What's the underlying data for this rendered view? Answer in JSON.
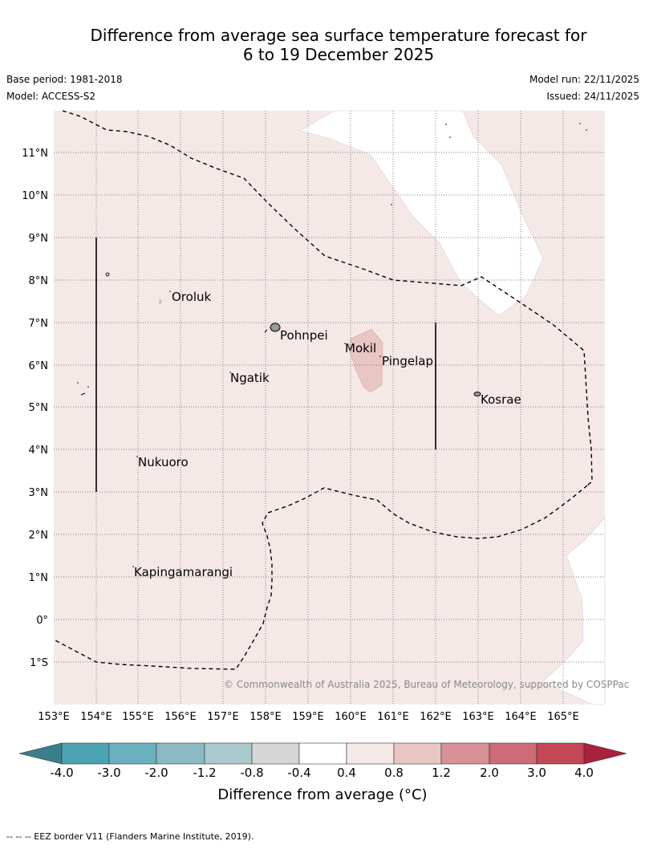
{
  "title_line1": "Difference from average sea surface temperature forecast for",
  "title_line2": "6 to 19 December 2025",
  "base_period": "Base period: 1981-2018",
  "model": "Model: ACCESS-S2",
  "model_run": "Model run: 22/11/2025",
  "issued": "Issued: 24/11/2025",
  "copyright": "© Commonwealth of Australia 2025, Bureau of Meteorology, supported by COSPPac",
  "colors": {
    "fill_0.4_0.8": "#f5e9e8",
    "fill_0.8_1.2": "#e8c6c2",
    "fill_-0.4_0.4": "#ffffff"
  },
  "map": {
    "lon_ticks": [
      "153°E",
      "154°E",
      "155°E",
      "156°E",
      "157°E",
      "158°E",
      "159°E",
      "160°E",
      "161°E",
      "162°E",
      "163°E",
      "164°E",
      "165°E"
    ],
    "lat_ticks": [
      "11°N",
      "10°N",
      "9°N",
      "8°N",
      "7°N",
      "6°N",
      "5°N",
      "4°N",
      "3°N",
      "2°N",
      "1°N",
      "0°",
      "1°S"
    ],
    "places": [
      {
        "name": "Oroluk"
      },
      {
        "name": "Pohnpei"
      },
      {
        "name": "Mokil"
      },
      {
        "name": "Pingelap"
      },
      {
        "name": "Ngatik"
      },
      {
        "name": "Kosrae"
      },
      {
        "name": "Nukuoro"
      },
      {
        "name": "Kapingamarangi"
      }
    ]
  },
  "colorbar": {
    "title": "Difference from average (°C)",
    "tick_labels": [
      "-4.0",
      "-3.0",
      "-2.0",
      "-1.2",
      "-0.8",
      "-0.4",
      "0.4",
      "0.8",
      "1.2",
      "2.0",
      "3.0",
      "4.0"
    ],
    "bins": [
      "#3a7f8a",
      "#4aa3b3",
      "#6bb0be",
      "#8bbac4",
      "#aac9cc",
      "#d6d6d6",
      "#ffffff",
      "#f5e9e8",
      "#e8c6c2",
      "#d99096",
      "#cd6b76",
      "#c44756",
      "#a8213d"
    ]
  },
  "footnote": "-- -- -- EEZ border V11 (Flanders Marine Institute, 2019)."
}
